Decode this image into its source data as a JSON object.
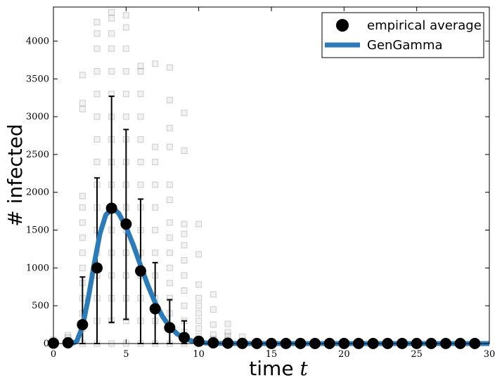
{
  "chart_data": {
    "type": "scatter",
    "xlabel": "time",
    "xlabel_var": "t",
    "ylabel": "# infected",
    "xlim": [
      0,
      30
    ],
    "ylim": [
      0,
      4450
    ],
    "xticks": [
      0,
      5,
      10,
      15,
      20,
      25,
      30
    ],
    "yticks": [
      0,
      500,
      1000,
      1500,
      2000,
      2500,
      3000,
      3500,
      4000
    ],
    "grid": false,
    "legend_position": "top-right",
    "series": [
      {
        "name": "empirical average",
        "kind": "points",
        "color": "#000000",
        "x": [
          0,
          1,
          2,
          3,
          4,
          5,
          6,
          7,
          8,
          9,
          10,
          11,
          12,
          13,
          14,
          15,
          16,
          17,
          18,
          19,
          20,
          21,
          22,
          23,
          24,
          25,
          26,
          27,
          28,
          29
        ],
        "y": [
          5,
          10,
          250,
          1000,
          1790,
          1580,
          960,
          460,
          210,
          80,
          30,
          10,
          5,
          2,
          1,
          1,
          1,
          1,
          1,
          1,
          1,
          1,
          1,
          1,
          1,
          1,
          1,
          1,
          1,
          1
        ],
        "err_low": [
          0,
          0,
          0,
          0,
          280,
          320,
          0,
          0,
          0,
          0,
          0,
          0,
          0,
          0,
          0,
          0,
          0,
          0,
          0,
          0,
          0,
          0,
          0,
          0,
          0,
          0,
          0,
          0,
          0,
          0
        ],
        "err_high": [
          0,
          0,
          880,
          2190,
          3270,
          2830,
          1910,
          1070,
          580,
          300,
          0,
          0,
          0,
          0,
          0,
          0,
          0,
          0,
          0,
          0,
          0,
          0,
          0,
          0,
          0,
          0,
          0,
          0,
          0,
          0
        ]
      },
      {
        "name": "GenGamma",
        "kind": "curve",
        "color": "#2b7bb9",
        "x": [
          1.3,
          1.6,
          2.0,
          2.4,
          2.8,
          3.2,
          3.6,
          4.0,
          4.2,
          4.5,
          5.0,
          5.5,
          6.0,
          6.5,
          7.0,
          7.5,
          8.0,
          8.5,
          9.0,
          9.5,
          10.0,
          10.5,
          11.0,
          12.0,
          14.0,
          20.0,
          25.0,
          30.0
        ],
        "y": [
          0,
          30,
          220,
          600,
          1050,
          1450,
          1700,
          1780,
          1775,
          1720,
          1540,
          1300,
          1030,
          770,
          540,
          360,
          225,
          130,
          70,
          36,
          17,
          8,
          3,
          1,
          0,
          0,
          0,
          0
        ]
      }
    ],
    "raw_samples": {
      "color": "#000000",
      "by_time": [
        {
          "t": 0,
          "values": [
            0,
            20,
            50
          ]
        },
        {
          "t": 1,
          "values": [
            0,
            40,
            80,
            110
          ]
        },
        {
          "t": 2,
          "values": [
            0,
            200,
            400,
            600,
            800,
            1000,
            1200,
            1400,
            1600,
            1800,
            1950,
            3100,
            3180,
            3550
          ]
        },
        {
          "t": 3,
          "values": [
            0,
            300,
            600,
            900,
            1200,
            1500,
            1800,
            2100,
            2400,
            2700,
            3000,
            3300,
            3600,
            3900,
            4100,
            4250
          ]
        },
        {
          "t": 4,
          "values": [
            0,
            300,
            600,
            900,
            1200,
            1500,
            1800,
            2100,
            2400,
            2700,
            3000,
            3300,
            3600,
            3900,
            4100,
            4300,
            4380
          ]
        },
        {
          "t": 5,
          "values": [
            0,
            300,
            600,
            900,
            1200,
            1500,
            1800,
            2100,
            2400,
            2700,
            3000,
            3300,
            3600,
            3900,
            4180,
            4340
          ]
        },
        {
          "t": 6,
          "values": [
            0,
            300,
            600,
            900,
            1200,
            1500,
            1800,
            2100,
            2400,
            2700,
            3000,
            3300,
            3600,
            3670
          ]
        },
        {
          "t": 7,
          "values": [
            0,
            300,
            600,
            900,
            1200,
            1500,
            1800,
            2100,
            2400,
            2600,
            3700
          ]
        },
        {
          "t": 8,
          "values": [
            0,
            200,
            400,
            600,
            800,
            1000,
            1200,
            1400,
            1600,
            1900,
            2100,
            2600,
            2850,
            3220,
            3650
          ]
        },
        {
          "t": 9,
          "values": [
            0,
            150,
            300,
            500,
            700,
            900,
            1100,
            1300,
            1450,
            1580,
            2550,
            3050
          ]
        },
        {
          "t": 10,
          "values": [
            0,
            100,
            200,
            300,
            400,
            500,
            600,
            780,
            1180,
            1580
          ]
        },
        {
          "t": 11,
          "values": [
            0,
            60,
            120,
            250,
            450,
            650
          ]
        },
        {
          "t": 12,
          "values": [
            0,
            50,
            100,
            150,
            260
          ]
        },
        {
          "t": 13,
          "values": [
            0,
            30,
            90
          ]
        },
        {
          "t": 14,
          "values": [
            0,
            20
          ]
        }
      ]
    }
  }
}
